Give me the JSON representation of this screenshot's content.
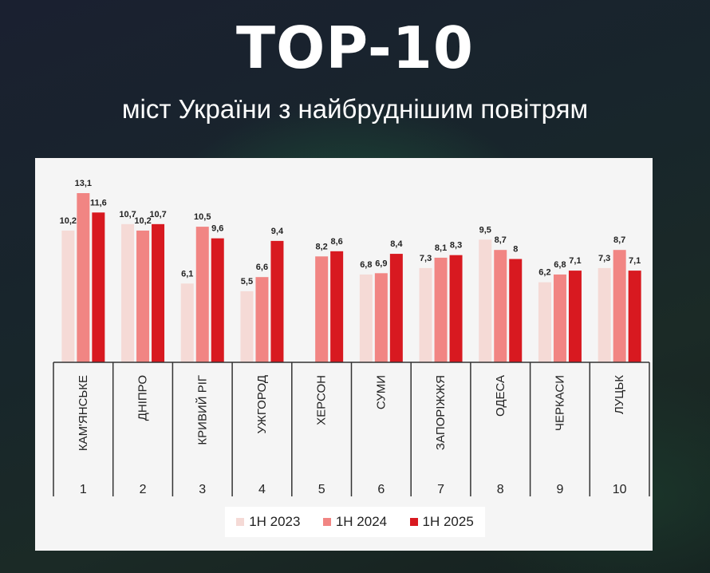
{
  "header": {
    "title": "TOP-10",
    "subtitle": "міст України з найбруднішим повітрям"
  },
  "colors": {
    "series": [
      "#f5dad6",
      "#f18583",
      "#d81920"
    ],
    "axis": "#333333"
  },
  "chart_data": {
    "type": "bar",
    "categories": [
      "КАМ'ЯНСЬКЕ",
      "ДНІПРО",
      "КРИВИЙ РІГ",
      "УЖГОРОД",
      "ХЕРСОН",
      "СУМИ",
      "ЗАПОРІЖЖЯ",
      "ОДЕСА",
      "ЧЕРКАСИ",
      "ЛУЦЬК"
    ],
    "ranks": [
      "1",
      "2",
      "3",
      "4",
      "5",
      "6",
      "7",
      "8",
      "9",
      "10"
    ],
    "series": [
      {
        "name": "1H 2023",
        "values": [
          10.2,
          10.7,
          6.1,
          5.5,
          null,
          6.8,
          7.3,
          9.5,
          6.2,
          7.3
        ],
        "labels": [
          "10,2",
          "10,7",
          "6,1",
          "5,5",
          "",
          "6,8",
          "7,3",
          "9,5",
          "6,2",
          "7,3"
        ]
      },
      {
        "name": "1H 2024",
        "values": [
          13.1,
          10.2,
          10.5,
          6.6,
          8.2,
          6.9,
          8.1,
          8.7,
          6.8,
          8.7
        ],
        "labels": [
          "13,1",
          "10,2",
          "10,5",
          "6,6",
          "8,2",
          "6,9",
          "8,1",
          "8,7",
          "6,8",
          "8,7"
        ]
      },
      {
        "name": "1H 2025",
        "values": [
          11.6,
          10.7,
          9.6,
          9.4,
          8.6,
          8.4,
          8.3,
          8,
          7.1,
          7.1
        ],
        "labels": [
          "11,6",
          "10,7",
          "9,6",
          "9,4",
          "8,6",
          "8,4",
          "8,3",
          "8",
          "7,1",
          "7,1"
        ]
      }
    ],
    "ylim": [
      0,
      13.1
    ],
    "grid": false,
    "legend": "bottom"
  }
}
